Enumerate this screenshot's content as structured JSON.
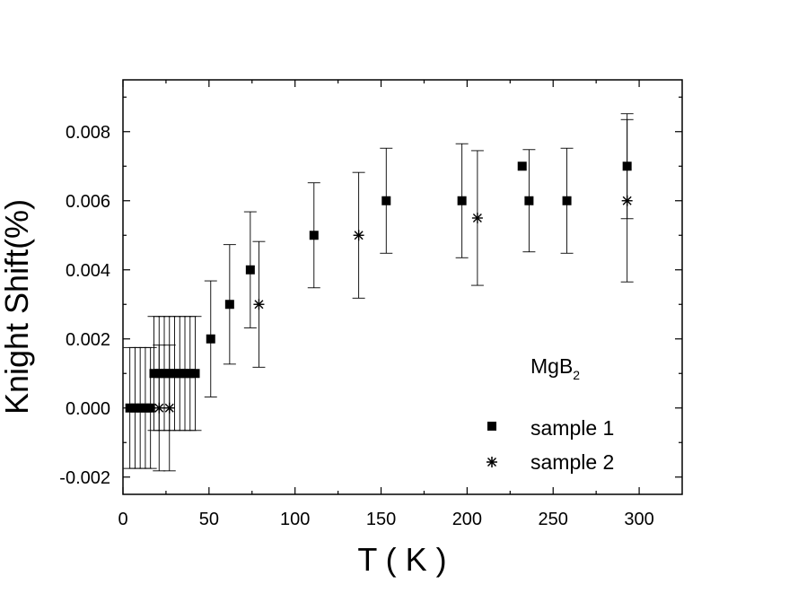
{
  "chart_data": {
    "type": "scatter",
    "xlabel": "T ( K )",
    "ylabel": "Knight Shift(%)",
    "xlim": [
      0,
      325
    ],
    "ylim": [
      -0.0025,
      0.0095
    ],
    "x_ticks": [
      0,
      50,
      100,
      150,
      200,
      250,
      300
    ],
    "x_tick_labels": [
      "0",
      "50",
      "100",
      "150",
      "200",
      "250",
      "300"
    ],
    "y_ticks": [
      -0.002,
      0.0,
      0.002,
      0.004,
      0.006,
      0.008
    ],
    "y_tick_labels": [
      "-0.002",
      "0.000",
      "0.002",
      "0.004",
      "0.006",
      "0.008"
    ],
    "annotation": {
      "text": "MgB",
      "subscript": "2"
    },
    "legend_position": "bottom-right",
    "grid": false,
    "series": [
      {
        "name": "sample 1",
        "marker": "square",
        "points": [
          {
            "x": 4,
            "y": 0.0,
            "err": 0.00175
          },
          {
            "x": 7,
            "y": 0.0,
            "err": 0.00175
          },
          {
            "x": 10,
            "y": 0.0,
            "err": 0.00175
          },
          {
            "x": 13,
            "y": 0.0,
            "err": 0.00175
          },
          {
            "x": 16,
            "y": 0.0,
            "err": 0.00175
          },
          {
            "x": 18,
            "y": 0.001,
            "err": 0.00165
          },
          {
            "x": 21,
            "y": 0.001,
            "err": 0.00165
          },
          {
            "x": 24,
            "y": 0.001,
            "err": 0.00165
          },
          {
            "x": 27,
            "y": 0.001,
            "err": 0.00165
          },
          {
            "x": 30,
            "y": 0.001,
            "err": 0.00165
          },
          {
            "x": 33,
            "y": 0.001,
            "err": 0.00165
          },
          {
            "x": 36,
            "y": 0.001,
            "err": 0.00165
          },
          {
            "x": 39,
            "y": 0.001,
            "err": 0.00165
          },
          {
            "x": 42,
            "y": 0.001,
            "err": 0.00165
          },
          {
            "x": 51,
            "y": 0.002,
            "err": 0.00168
          },
          {
            "x": 62,
            "y": 0.003,
            "err": 0.00173
          },
          {
            "x": 74,
            "y": 0.004,
            "err": 0.00168
          },
          {
            "x": 111,
            "y": 0.005,
            "err": 0.00152
          },
          {
            "x": 153,
            "y": 0.006,
            "err": 0.00152
          },
          {
            "x": 197,
            "y": 0.006,
            "err": 0.00165
          },
          {
            "x": 232,
            "y": 0.007,
            "err": 0.0
          },
          {
            "x": 236,
            "y": 0.006,
            "err": 0.00148
          },
          {
            "x": 258,
            "y": 0.006,
            "err": 0.00152
          },
          {
            "x": 293,
            "y": 0.007,
            "err": 0.00152
          }
        ]
      },
      {
        "name": "sample 2",
        "marker": "asterisk",
        "points": [
          {
            "x": 21,
            "y": 0.0,
            "err": 0.00182
          },
          {
            "x": 27,
            "y": 0.0,
            "err": 0.00182
          },
          {
            "x": 79,
            "y": 0.003,
            "err": 0.00182
          },
          {
            "x": 137,
            "y": 0.005,
            "err": 0.00182
          },
          {
            "x": 206,
            "y": 0.0055,
            "err": 0.00195
          },
          {
            "x": 293,
            "y": 0.006,
            "err": 0.00235
          }
        ]
      }
    ]
  }
}
